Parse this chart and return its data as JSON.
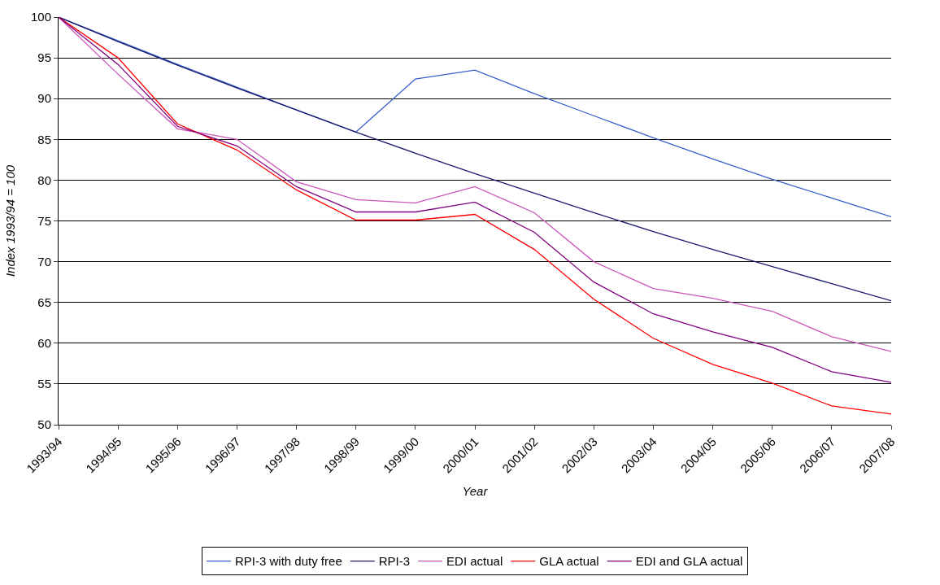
{
  "chart_data": {
    "type": "line",
    "xlabel": "Year",
    "ylabel": "Index 1993/94 = 100",
    "categories": [
      "1993/94",
      "1994/95",
      "1995/96",
      "1996/97",
      "1997/98",
      "1998/99",
      "1999/00",
      "2000/01",
      "2001/02",
      "2002/03",
      "2003/04",
      "2004/05",
      "2005/06",
      "2006/07",
      "2007/08"
    ],
    "series": [
      {
        "name": "RPI-3 with duty free",
        "color": "#3a5fcd",
        "values": [
          100,
          97.1,
          94.2,
          91.4,
          88.6,
          85.9,
          92.4,
          93.5,
          90.6,
          87.9,
          85.2,
          82.6,
          80.1,
          77.8,
          75.5
        ]
      },
      {
        "name": "RPI-3",
        "color": "#1a1a6e",
        "values": [
          100,
          97.0,
          94.1,
          91.3,
          88.6,
          85.9,
          83.3,
          80.8,
          78.4,
          76.0,
          73.7,
          71.5,
          69.4,
          67.3,
          65.2
        ]
      },
      {
        "name": "EDI actual",
        "color": "#cc55bb",
        "values": [
          100,
          93.0,
          86.3,
          85.0,
          79.8,
          77.6,
          77.2,
          79.2,
          76.0,
          70.0,
          66.7,
          65.5,
          63.9,
          60.8,
          59.0
        ]
      },
      {
        "name": "GLA actual",
        "color": "#ff0000",
        "values": [
          100,
          95.0,
          86.9,
          83.7,
          78.8,
          75.1,
          75.1,
          75.8,
          71.5,
          65.4,
          60.6,
          57.4,
          55.1,
          52.3,
          51.3
        ]
      },
      {
        "name": "EDI and GLA actual",
        "color": "#800080",
        "values": [
          100,
          94.2,
          86.6,
          84.2,
          79.2,
          76.1,
          76.1,
          77.3,
          73.6,
          67.5,
          63.6,
          61.4,
          59.5,
          56.5,
          55.2
        ]
      }
    ],
    "ylim": [
      50,
      100
    ],
    "yticks": [
      50,
      55,
      60,
      65,
      70,
      75,
      80,
      85,
      90,
      95,
      100
    ],
    "grid": "y",
    "legend": "bottom",
    "marker": "none",
    "line_style": "solid"
  }
}
